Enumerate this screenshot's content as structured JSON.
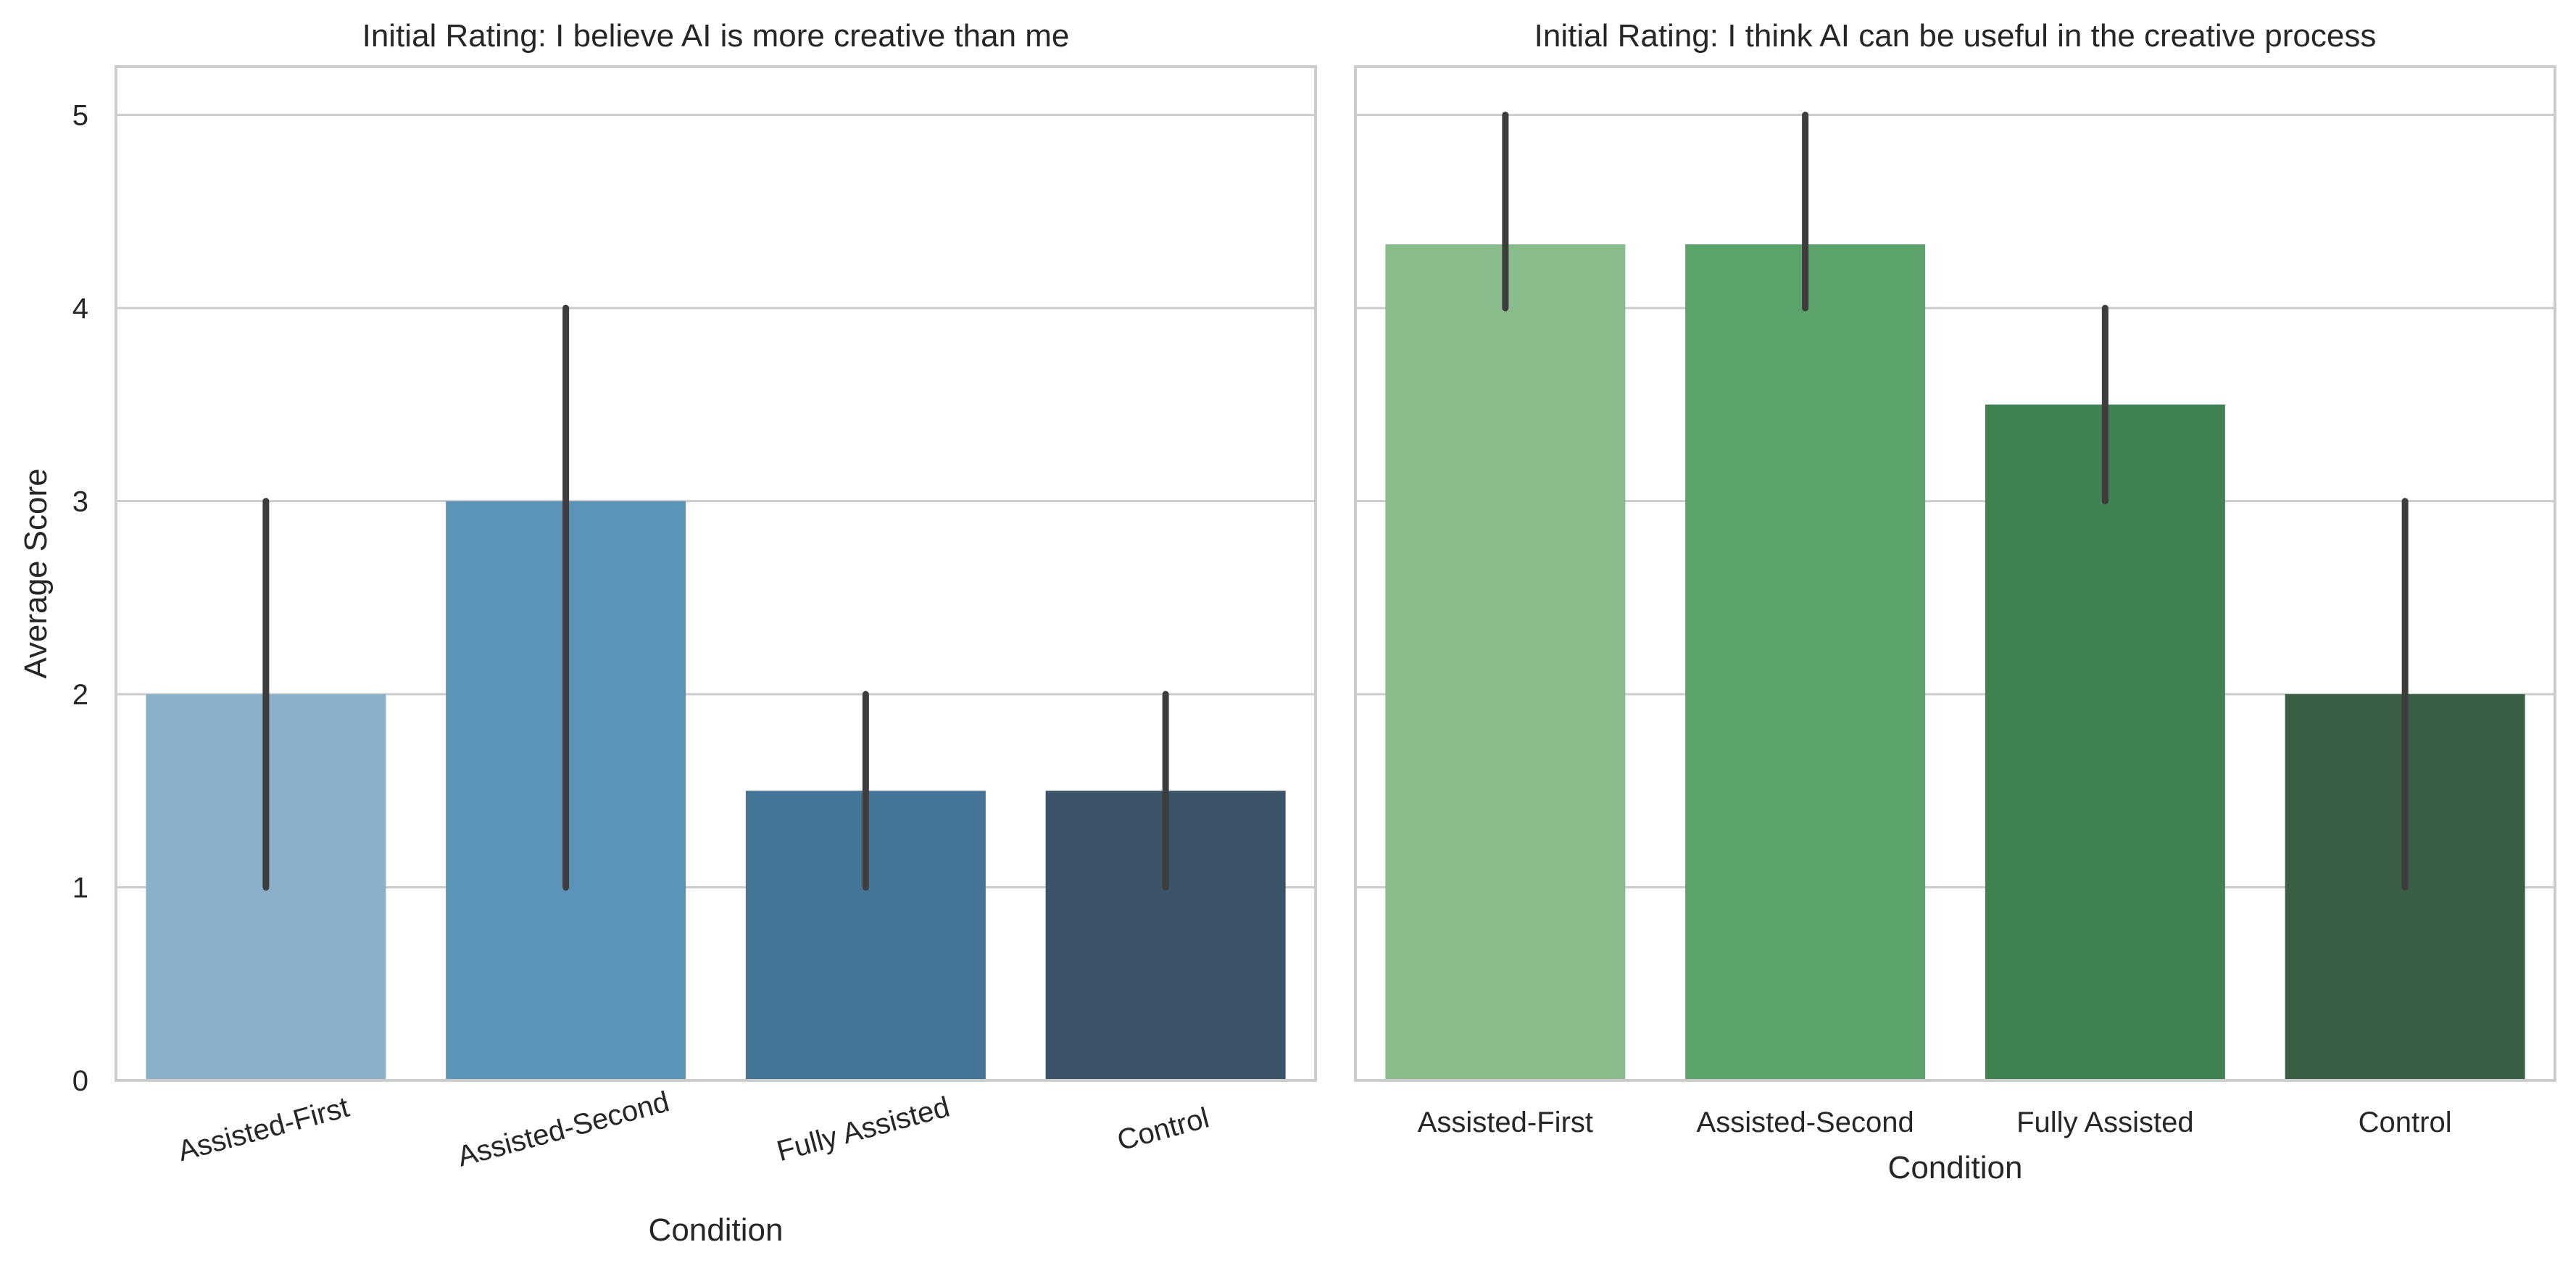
{
  "chart_data": [
    {
      "type": "bar",
      "title": "Initial Rating: I believe AI is more creative than me",
      "xlabel": "Condition",
      "ylabel": "Average Score",
      "categories": [
        "Assisted-First",
        "Assisted-Second",
        "Fully Assisted",
        "Control"
      ],
      "values": [
        2.0,
        3.0,
        1.5,
        1.5
      ],
      "error_low": [
        1,
        1,
        1,
        1
      ],
      "error_high": [
        3,
        4,
        2,
        2
      ],
      "ylim": [
        0,
        5.25
      ],
      "yticks": [
        "0",
        "1",
        "2",
        "3",
        "4",
        "5"
      ],
      "colors": [
        "#8ab0cc",
        "#5c93b9",
        "#447596",
        "#3c546a"
      ],
      "error_color": "#3d3d3d",
      "grid": "horizontal",
      "category_labels_rotated": true
    },
    {
      "type": "bar",
      "title": "Initial Rating: I think AI can be useful in the creative process",
      "xlabel": "Condition",
      "ylabel": "",
      "categories": [
        "Assisted-First",
        "Assisted-Second",
        "Fully Assisted",
        "Control"
      ],
      "values": [
        4.33,
        4.33,
        3.5,
        2.0
      ],
      "error_low": [
        4,
        4,
        3,
        1
      ],
      "error_high": [
        5,
        5,
        4,
        3
      ],
      "ylim": [
        0,
        5.25
      ],
      "yticks": [],
      "colors": [
        "#88bc8b",
        "#5ca36b",
        "#418253",
        "#3b5e46"
      ],
      "error_color": "#3d3d3d",
      "grid": "horizontal",
      "category_labels_rotated": false
    }
  ]
}
